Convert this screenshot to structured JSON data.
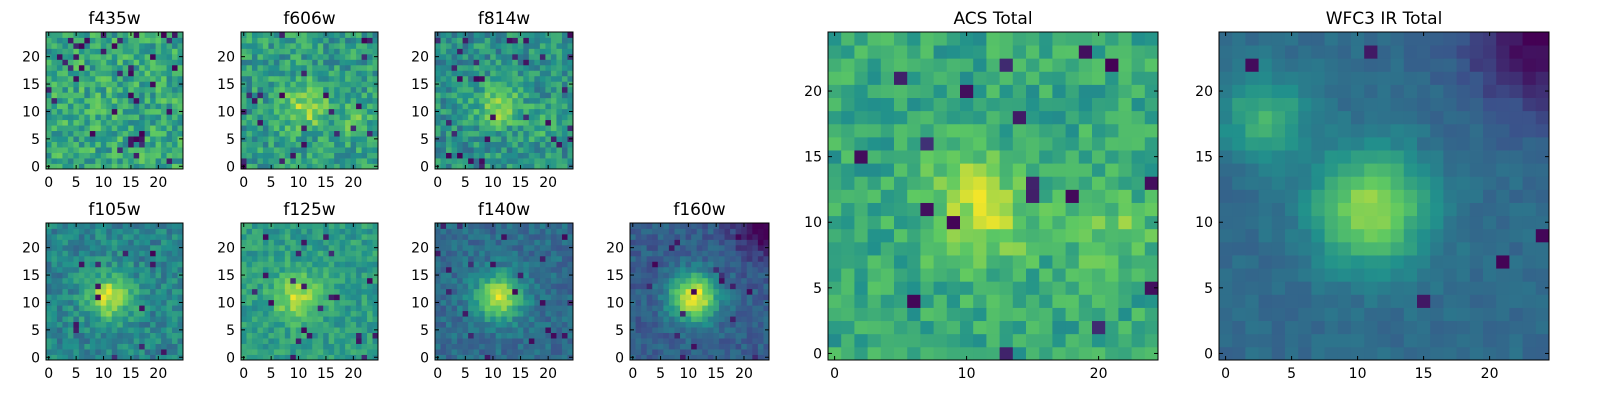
{
  "figure": {
    "colormap": "viridis",
    "colormap_stops": [
      "#440154",
      "#3b528b",
      "#21918c",
      "#5ec962",
      "#fde725"
    ]
  },
  "chart_data": [
    {
      "type": "heatmap",
      "title": "f435w",
      "grid_size": [
        25,
        25
      ],
      "xlim": [
        0,
        24
      ],
      "ylim": [
        0,
        24
      ],
      "xticks": [
        0,
        5,
        10,
        15,
        20
      ],
      "yticks": [
        0,
        5,
        10,
        15,
        20
      ],
      "peak": [
        11,
        11
      ],
      "peak_strength": 0.03,
      "base": 0.6,
      "noise": 0.35,
      "low_outlier_rate": 0.06,
      "secondary_peak": null,
      "low_corner": null
    },
    {
      "type": "heatmap",
      "title": "f606w",
      "grid_size": [
        25,
        25
      ],
      "xlim": [
        0,
        24
      ],
      "ylim": [
        0,
        24
      ],
      "xticks": [
        0,
        5,
        10,
        15,
        20
      ],
      "yticks": [
        0,
        5,
        10,
        15,
        20
      ],
      "peak": [
        11,
        11
      ],
      "peak_strength": 0.3,
      "base": 0.55,
      "noise": 0.32,
      "low_outlier_rate": 0.05,
      "secondary_peak": [
        20,
        8
      ],
      "low_corner": null
    },
    {
      "type": "heatmap",
      "title": "f814w",
      "grid_size": [
        25,
        25
      ],
      "xlim": [
        0,
        24
      ],
      "ylim": [
        0,
        24
      ],
      "xticks": [
        0,
        5,
        10,
        15,
        20
      ],
      "yticks": [
        0,
        5,
        10,
        15,
        20
      ],
      "peak": [
        11,
        11
      ],
      "peak_strength": 0.3,
      "base": 0.5,
      "noise": 0.32,
      "low_outlier_rate": 0.05,
      "secondary_peak": [
        20,
        8
      ],
      "low_corner": null
    },
    {
      "type": "heatmap",
      "title": "f105w",
      "grid_size": [
        25,
        25
      ],
      "xlim": [
        0,
        24
      ],
      "ylim": [
        0,
        24
      ],
      "xticks": [
        0,
        5,
        10,
        15,
        20
      ],
      "yticks": [
        0,
        5,
        10,
        15,
        20
      ],
      "peak": [
        11,
        11
      ],
      "peak_strength": 0.45,
      "base": 0.45,
      "noise": 0.25,
      "low_outlier_rate": 0.03,
      "secondary_peak": null,
      "low_corner": null
    },
    {
      "type": "heatmap",
      "title": "f125w",
      "grid_size": [
        25,
        25
      ],
      "xlim": [
        0,
        24
      ],
      "ylim": [
        0,
        24
      ],
      "xticks": [
        0,
        5,
        10,
        15,
        20
      ],
      "yticks": [
        0,
        5,
        10,
        15,
        20
      ],
      "peak": [
        10,
        11
      ],
      "peak_strength": 0.35,
      "base": 0.55,
      "noise": 0.22,
      "low_outlier_rate": 0.03,
      "secondary_peak": null,
      "low_corner": null
    },
    {
      "type": "heatmap",
      "title": "f140w",
      "grid_size": [
        25,
        25
      ],
      "xlim": [
        0,
        24
      ],
      "ylim": [
        0,
        24
      ],
      "xticks": [
        0,
        5,
        10,
        15,
        20
      ],
      "yticks": [
        0,
        5,
        10,
        15,
        20
      ],
      "peak": [
        11,
        11
      ],
      "peak_strength": 0.55,
      "base": 0.35,
      "noise": 0.18,
      "low_outlier_rate": 0.03,
      "secondary_peak": null,
      "low_corner": null
    },
    {
      "type": "heatmap",
      "title": "f160w",
      "grid_size": [
        25,
        25
      ],
      "xlim": [
        0,
        24
      ],
      "ylim": [
        0,
        24
      ],
      "xticks": [
        0,
        5,
        10,
        15,
        20
      ],
      "yticks": [
        0,
        5,
        10,
        15,
        20
      ],
      "peak": [
        11,
        11
      ],
      "peak_strength": 0.7,
      "base": 0.3,
      "noise": 0.16,
      "low_outlier_rate": 0.04,
      "secondary_peak": null,
      "low_corner": [
        24,
        24
      ]
    },
    {
      "type": "heatmap",
      "title": "ACS Total",
      "grid_size": [
        25,
        25
      ],
      "xlim": [
        0,
        24
      ],
      "ylim": [
        0,
        24
      ],
      "xticks": [
        0,
        10,
        20
      ],
      "yticks": [
        0,
        5,
        10,
        15,
        20
      ],
      "peak": [
        11,
        11
      ],
      "peak_strength": 0.3,
      "base": 0.6,
      "noise": 0.25,
      "low_outlier_rate": 0.04,
      "secondary_peak": [
        21,
        9
      ],
      "low_corner": null
    },
    {
      "type": "heatmap",
      "title": "WFC3 IR Total",
      "grid_size": [
        25,
        25
      ],
      "xlim": [
        0,
        24
      ],
      "ylim": [
        0,
        24
      ],
      "xticks": [
        0,
        5,
        10,
        15,
        20
      ],
      "yticks": [
        0,
        5,
        10,
        15,
        20
      ],
      "peak": [
        11,
        11
      ],
      "peak_strength": 0.5,
      "base": 0.35,
      "noise": 0.08,
      "low_outlier_rate": 0.01,
      "secondary_peak": [
        3,
        18
      ],
      "low_corner": [
        24,
        24
      ]
    }
  ]
}
